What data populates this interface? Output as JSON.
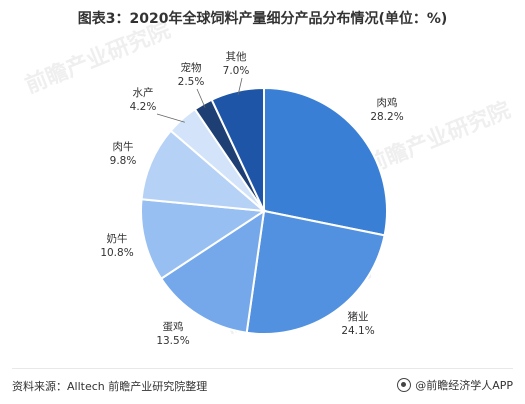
{
  "title": "图表3：2020年全球饲料产量细分产品分布情况(单位：%)",
  "source": "资料来源：Alltech 前瞻产业研究院整理",
  "brand": "@前瞻经济学人APP",
  "watermark": "前瞻产业研究院",
  "chart_data": {
    "type": "pie",
    "title": "图表3：2020年全球饲料产量细分产品分布情况(单位：%)",
    "unit": "%",
    "slices": [
      {
        "label": "肉鸡",
        "value": 28.2,
        "display": "28.2%",
        "color": "#3a7fd6"
      },
      {
        "label": "猪业",
        "value": 24.1,
        "display": "24.1%",
        "color": "#5290e0"
      },
      {
        "label": "蛋鸡",
        "value": 13.5,
        "display": "13.5%",
        "color": "#75a8ea"
      },
      {
        "label": "奶牛",
        "value": 10.8,
        "display": "10.8%",
        "color": "#98bff1"
      },
      {
        "label": "肉牛",
        "value": 9.8,
        "display": "9.8%",
        "color": "#b6d1f6"
      },
      {
        "label": "水产",
        "value": 4.2,
        "display": "4.2%",
        "color": "#d2e3fa"
      },
      {
        "label": "宠物",
        "value": 2.5,
        "display": "2.5%",
        "color": "#1e3f73"
      },
      {
        "label": "其他",
        "value": 7.0,
        "display": "7.0%",
        "color": "#1e55a6"
      }
    ]
  }
}
